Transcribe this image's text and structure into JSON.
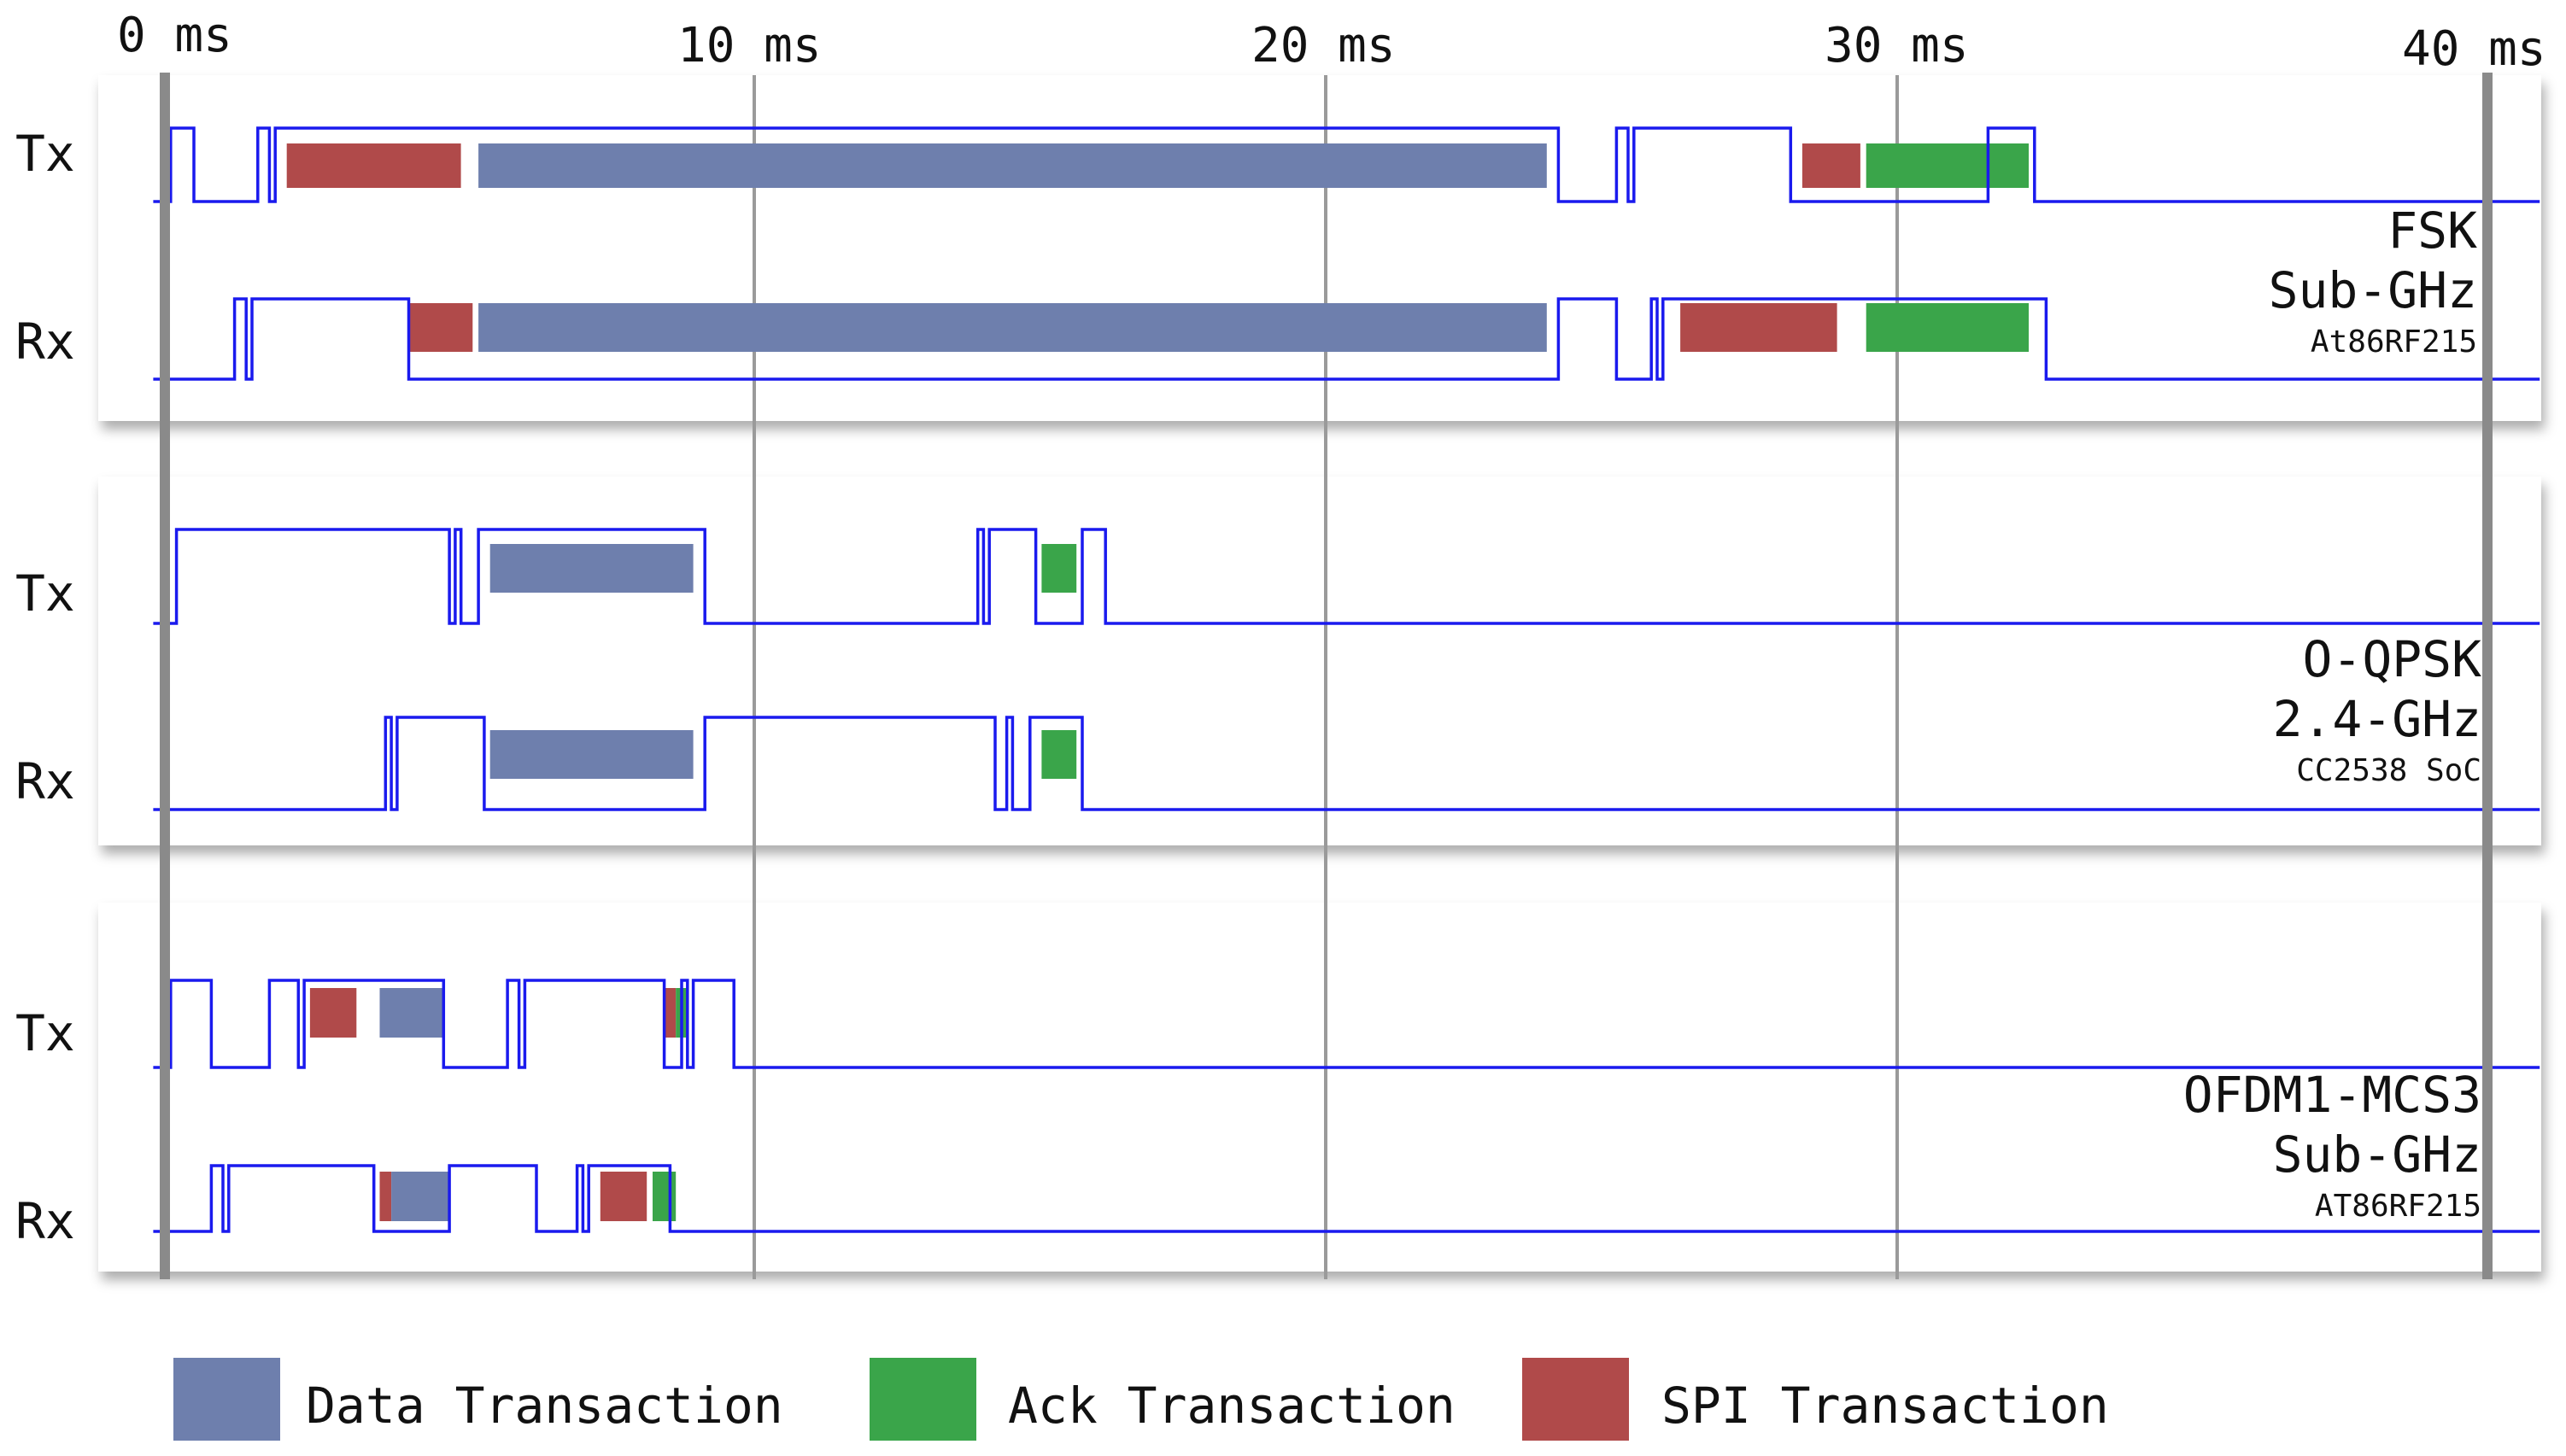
{
  "axis": {
    "unit": "ms",
    "min": 0,
    "max": 40,
    "ticks": [
      {
        "value": 0,
        "label": "0 ms"
      },
      {
        "value": 10,
        "label": "10 ms"
      },
      {
        "value": 20,
        "label": "20 ms"
      },
      {
        "value": 30,
        "label": "30 ms"
      },
      {
        "value": 40,
        "label": "40 ms"
      }
    ]
  },
  "colors": {
    "data": "#6e7fad",
    "ack": "#3aa54a",
    "spi": "#b04a4a",
    "signal": "#1a1aee",
    "grid": "#9a9a9a",
    "boundary": "#8a8a8a"
  },
  "panels": [
    {
      "id": "fsk",
      "label_line1": "FSK",
      "label_line2": "Sub-GHz",
      "label_line3": "At86RF215",
      "channels": [
        {
          "name": "Tx",
          "waveform": [
            [
              -0.2,
              0
            ],
            [
              0.1,
              0
            ],
            [
              0.1,
              1
            ],
            [
              0.5,
              1
            ],
            [
              0.5,
              0
            ],
            [
              1.6,
              0
            ],
            [
              1.6,
              1
            ],
            [
              1.8,
              1
            ],
            [
              1.8,
              0
            ],
            [
              1.9,
              0
            ],
            [
              1.9,
              1
            ],
            [
              24.0,
              1
            ],
            [
              24.0,
              0
            ],
            [
              25.0,
              0
            ],
            [
              25.0,
              1
            ],
            [
              25.2,
              1
            ],
            [
              25.2,
              0
            ],
            [
              25.3,
              0
            ],
            [
              25.3,
              1
            ],
            [
              28.0,
              1
            ],
            [
              28.0,
              0
            ],
            [
              31.4,
              0
            ],
            [
              31.4,
              1
            ],
            [
              32.2,
              1
            ],
            [
              32.2,
              0
            ],
            [
              40.9,
              0
            ]
          ],
          "blocks": [
            {
              "kind": "spi",
              "start": 2.1,
              "end": 5.1
            },
            {
              "kind": "data",
              "start": 5.4,
              "end": 23.8
            },
            {
              "kind": "spi",
              "start": 28.2,
              "end": 29.2
            },
            {
              "kind": "ack",
              "start": 29.3,
              "end": 32.1
            }
          ]
        },
        {
          "name": "Rx",
          "waveform": [
            [
              -0.2,
              0
            ],
            [
              1.2,
              0
            ],
            [
              1.2,
              1
            ],
            [
              1.4,
              1
            ],
            [
              1.4,
              0
            ],
            [
              1.5,
              0
            ],
            [
              1.5,
              1
            ],
            [
              4.2,
              1
            ],
            [
              4.2,
              0
            ],
            [
              24.0,
              0
            ],
            [
              24.0,
              1
            ],
            [
              25.0,
              1
            ],
            [
              25.0,
              0
            ],
            [
              25.6,
              0
            ],
            [
              25.6,
              1
            ],
            [
              25.7,
              1
            ],
            [
              25.7,
              0
            ],
            [
              25.8,
              0
            ],
            [
              25.8,
              1
            ],
            [
              32.4,
              1
            ],
            [
              32.4,
              0
            ],
            [
              40.9,
              0
            ]
          ],
          "blocks": [
            {
              "kind": "spi",
              "start": 4.2,
              "end": 5.3
            },
            {
              "kind": "data",
              "start": 5.4,
              "end": 23.8
            },
            {
              "kind": "spi",
              "start": 26.1,
              "end": 28.8
            },
            {
              "kind": "ack",
              "start": 29.3,
              "end": 32.1
            }
          ]
        }
      ]
    },
    {
      "id": "oqpsk",
      "label_line1": "O-QPSK",
      "label_line2": "2.4-GHz",
      "label_line3": "CC2538 SoC",
      "channels": [
        {
          "name": "Tx",
          "waveform": [
            [
              -0.2,
              0
            ],
            [
              0.2,
              0
            ],
            [
              0.2,
              1
            ],
            [
              4.9,
              1
            ],
            [
              4.9,
              0
            ],
            [
              5.0,
              0
            ],
            [
              5.0,
              1
            ],
            [
              5.1,
              1
            ],
            [
              5.1,
              0
            ],
            [
              5.4,
              0
            ],
            [
              5.4,
              1
            ],
            [
              9.3,
              1
            ],
            [
              9.3,
              0
            ],
            [
              14.0,
              0
            ],
            [
              14.0,
              1
            ],
            [
              14.1,
              1
            ],
            [
              14.1,
              0
            ],
            [
              14.2,
              0
            ],
            [
              14.2,
              1
            ],
            [
              15.0,
              1
            ],
            [
              15.0,
              0
            ],
            [
              15.8,
              0
            ],
            [
              15.8,
              1
            ],
            [
              16.2,
              1
            ],
            [
              16.2,
              0
            ],
            [
              40.9,
              0
            ]
          ],
          "blocks": [
            {
              "kind": "data",
              "start": 5.6,
              "end": 9.1
            },
            {
              "kind": "ack",
              "start": 15.1,
              "end": 15.7
            }
          ]
        },
        {
          "name": "Rx",
          "waveform": [
            [
              -0.2,
              0
            ],
            [
              3.8,
              0
            ],
            [
              3.8,
              1
            ],
            [
              3.9,
              1
            ],
            [
              3.9,
              0
            ],
            [
              4.0,
              0
            ],
            [
              4.0,
              1
            ],
            [
              5.5,
              1
            ],
            [
              5.5,
              0
            ],
            [
              9.3,
              0
            ],
            [
              9.3,
              1
            ],
            [
              14.3,
              1
            ],
            [
              14.3,
              0
            ],
            [
              14.5,
              0
            ],
            [
              14.5,
              1
            ],
            [
              14.6,
              1
            ],
            [
              14.6,
              0
            ],
            [
              14.9,
              0
            ],
            [
              14.9,
              1
            ],
            [
              15.8,
              1
            ],
            [
              15.8,
              0
            ],
            [
              40.9,
              0
            ]
          ],
          "blocks": [
            {
              "kind": "data",
              "start": 5.6,
              "end": 9.1
            },
            {
              "kind": "ack",
              "start": 15.1,
              "end": 15.7
            }
          ]
        }
      ]
    },
    {
      "id": "ofdm",
      "label_line1": "OFDM1-MCS3",
      "label_line2": "Sub-GHz",
      "label_line3": "AT86RF215",
      "channels": [
        {
          "name": "Tx",
          "waveform": [
            [
              -0.2,
              0
            ],
            [
              0.1,
              0
            ],
            [
              0.1,
              1
            ],
            [
              0.8,
              1
            ],
            [
              0.8,
              0
            ],
            [
              1.8,
              0
            ],
            [
              1.8,
              1
            ],
            [
              2.3,
              1
            ],
            [
              2.3,
              0
            ],
            [
              2.4,
              0
            ],
            [
              2.4,
              1
            ],
            [
              4.8,
              1
            ],
            [
              4.8,
              0
            ],
            [
              5.9,
              0
            ],
            [
              5.9,
              1
            ],
            [
              6.1,
              1
            ],
            [
              6.1,
              0
            ],
            [
              6.2,
              0
            ],
            [
              6.2,
              1
            ],
            [
              8.6,
              1
            ],
            [
              8.6,
              0
            ],
            [
              8.9,
              0
            ],
            [
              8.9,
              1
            ],
            [
              9.0,
              1
            ],
            [
              9.0,
              0
            ],
            [
              9.1,
              0
            ],
            [
              9.1,
              1
            ],
            [
              9.8,
              1
            ],
            [
              9.8,
              0
            ],
            [
              40.9,
              0
            ]
          ],
          "blocks": [
            {
              "kind": "spi",
              "start": 2.5,
              "end": 3.3
            },
            {
              "kind": "data",
              "start": 3.7,
              "end": 4.8
            },
            {
              "kind": "spi",
              "start": 8.6,
              "end": 8.8
            },
            {
              "kind": "ack",
              "start": 8.8,
              "end": 9.0
            }
          ]
        },
        {
          "name": "Rx",
          "waveform": [
            [
              -0.2,
              0
            ],
            [
              0.8,
              0
            ],
            [
              0.8,
              1
            ],
            [
              1.0,
              1
            ],
            [
              1.0,
              0
            ],
            [
              1.1,
              0
            ],
            [
              1.1,
              1
            ],
            [
              3.6,
              1
            ],
            [
              3.6,
              0
            ],
            [
              4.9,
              0
            ],
            [
              4.9,
              1
            ],
            [
              6.4,
              1
            ],
            [
              6.4,
              0
            ],
            [
              7.1,
              0
            ],
            [
              7.1,
              1
            ],
            [
              7.2,
              1
            ],
            [
              7.2,
              0
            ],
            [
              7.3,
              0
            ],
            [
              7.3,
              1
            ],
            [
              8.7,
              1
            ],
            [
              8.7,
              0
            ],
            [
              40.9,
              0
            ]
          ],
          "blocks": [
            {
              "kind": "spi",
              "start": 3.7,
              "end": 3.9
            },
            {
              "kind": "data",
              "start": 3.9,
              "end": 4.9
            },
            {
              "kind": "spi",
              "start": 7.5,
              "end": 8.3
            },
            {
              "kind": "ack",
              "start": 8.4,
              "end": 8.8
            }
          ]
        }
      ]
    }
  ],
  "legend": [
    {
      "kind": "data",
      "label": "Data Transaction"
    },
    {
      "kind": "ack",
      "label": "Ack Transaction"
    },
    {
      "kind": "spi",
      "label": "SPI Transaction"
    }
  ]
}
